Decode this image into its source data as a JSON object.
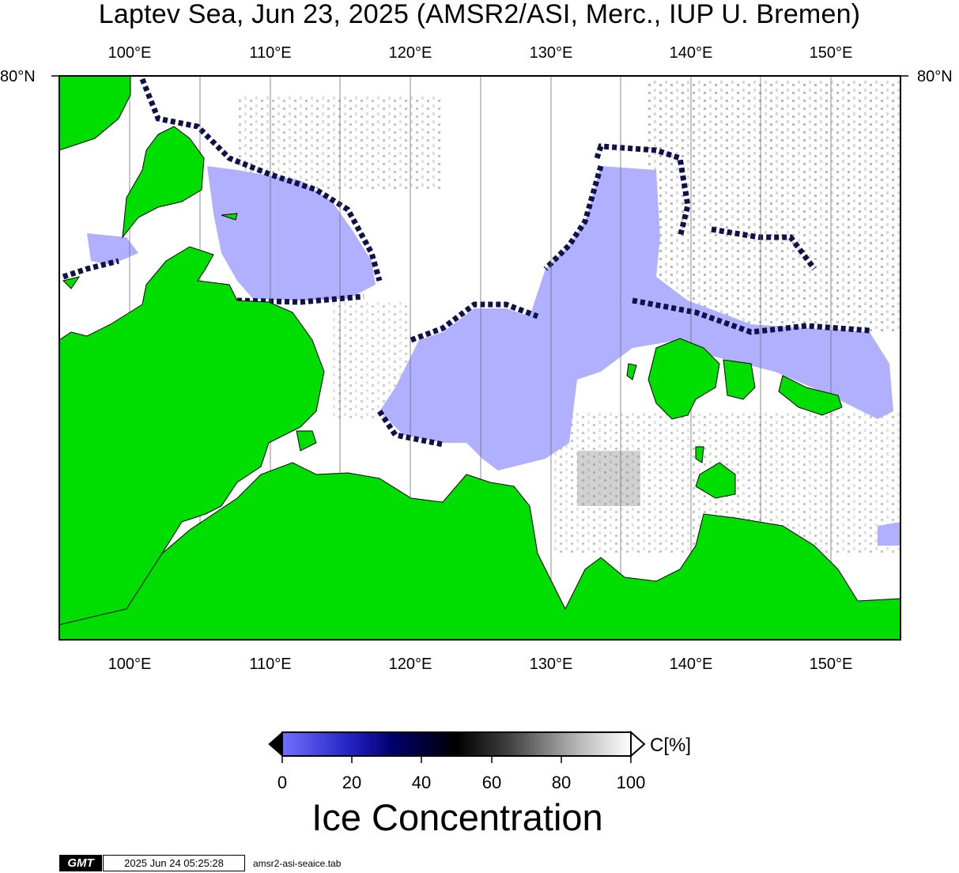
{
  "map": {
    "title": "Laptev Sea, Jun 23, 2025 (AMSR2/ASI, Merc., IUP U. Bremen)",
    "projection": "Mercator",
    "lon_range": [
      95,
      155
    ],
    "lat_top_label": "80°N",
    "lon_ticks": [
      "100°E",
      "110°E",
      "120°E",
      "130°E",
      "140°E",
      "150°E"
    ],
    "colors": {
      "land": "#00dd00",
      "open_water": "#b0b0ff",
      "ice_high": "#ffffff",
      "ice_mid": "#000000",
      "ice_low": "#00007a"
    }
  },
  "colorbar": {
    "title": "Ice Concentration",
    "unit": "C[%]",
    "ticks": [
      "0",
      "20",
      "40",
      "60",
      "80",
      "100"
    ],
    "range": [
      0,
      100
    ]
  },
  "footer": {
    "logo": "GMT",
    "timestamp": "2025 Jun 24 05:25:28",
    "file": "amsr2-asi-seaice.tab"
  }
}
